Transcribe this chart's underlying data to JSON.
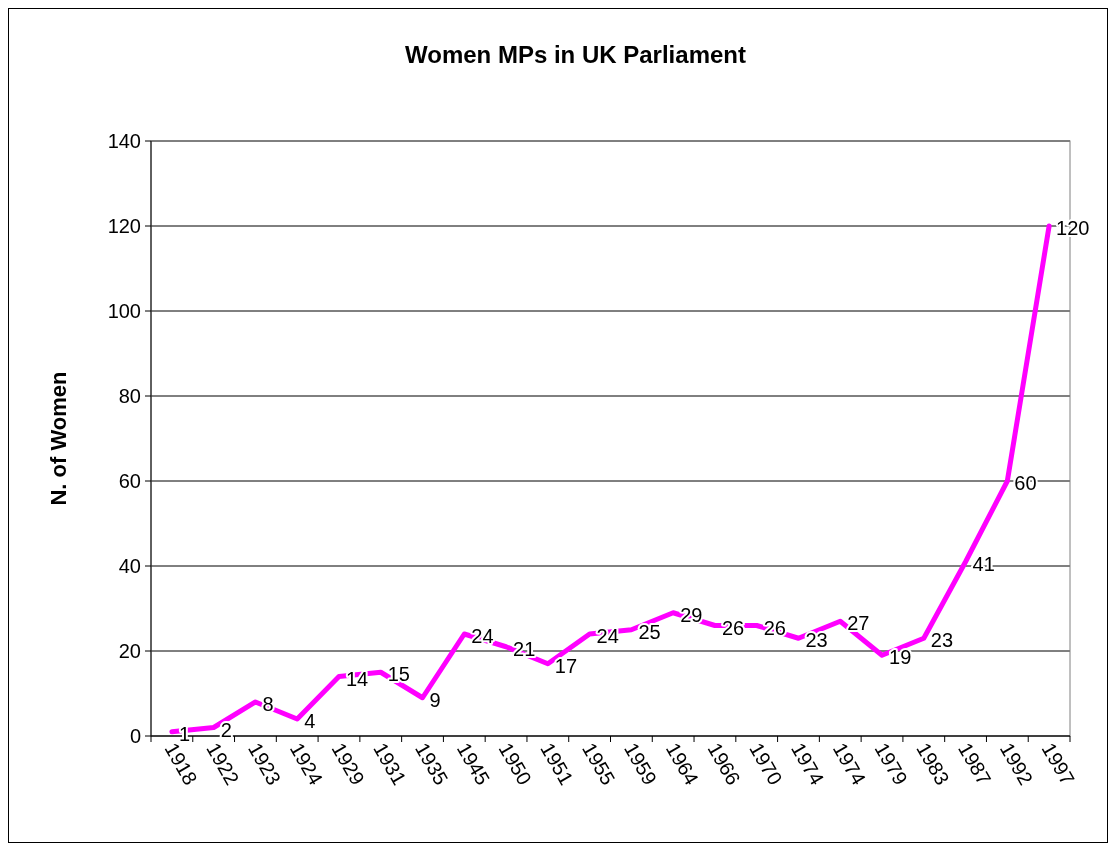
{
  "chart_data": {
    "type": "line",
    "title": "Women MPs in UK Parliament",
    "ylabel": "N. of Women",
    "categories": [
      "1918",
      "1922",
      "1923",
      "1924",
      "1929",
      "1931",
      "1935",
      "1945",
      "1950",
      "1951",
      "1955",
      "1959",
      "1964",
      "1966",
      "1970",
      "1974",
      "1974",
      "1979",
      "1983",
      "1987",
      "1992",
      "1997"
    ],
    "series": [
      {
        "color": "#ff00ff",
        "values": [
          1,
          2,
          8,
          4,
          14,
          15,
          9,
          24,
          21,
          17,
          24,
          25,
          29,
          26,
          26,
          23,
          27,
          19,
          23,
          41,
          60,
          120
        ]
      }
    ],
    "ylim": [
      0,
      140
    ],
    "yticks": [
      0,
      20,
      40,
      60,
      80,
      100,
      120,
      140
    ],
    "grid": "y",
    "marker": "none",
    "line_style": "solid",
    "data_labels": true
  }
}
